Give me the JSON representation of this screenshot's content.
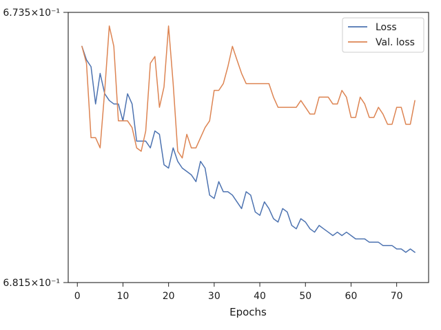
{
  "chart_data": {
    "type": "line",
    "title": "",
    "xlabel": "Epochs",
    "ylabel": "",
    "xlim": [
      -2,
      77
    ],
    "xticks": [
      0,
      10,
      20,
      30,
      40,
      50,
      60,
      70
    ],
    "xtick_labels": [
      "0",
      "10",
      "20",
      "30",
      "40",
      "50",
      "60",
      "70"
    ],
    "ylim": [
      0.6815,
      0.6735
    ],
    "yscale": "log",
    "ytick_labels": [
      "6.735×10⁻¹",
      "6.815×10⁻¹"
    ],
    "grid": false,
    "legend_position": "top-right",
    "x": [
      1,
      2,
      3,
      4,
      5,
      6,
      7,
      8,
      9,
      10,
      11,
      12,
      13,
      14,
      15,
      16,
      17,
      18,
      19,
      20,
      21,
      22,
      23,
      24,
      25,
      26,
      27,
      28,
      29,
      30,
      31,
      32,
      33,
      34,
      35,
      36,
      37,
      38,
      39,
      40,
      41,
      42,
      43,
      44,
      45,
      46,
      47,
      48,
      49,
      50,
      51,
      52,
      53,
      54,
      55,
      56,
      57,
      58,
      59,
      60,
      61,
      62,
      63,
      64,
      65,
      66,
      67,
      68,
      69,
      70,
      71,
      72,
      73,
      74
    ],
    "series": [
      {
        "name": "Loss",
        "color": "#4c72b0",
        "values": [
          0.6745,
          0.6749,
          0.6751,
          0.6762,
          0.6753,
          0.6759,
          0.6761,
          0.6762,
          0.6762,
          0.6767,
          0.6759,
          0.6762,
          0.6773,
          0.6773,
          0.6773,
          0.6775,
          0.677,
          0.6771,
          0.678,
          0.6781,
          0.6775,
          0.6779,
          0.6781,
          0.6782,
          0.6783,
          0.6785,
          0.6779,
          0.6781,
          0.6789,
          0.679,
          0.6785,
          0.6788,
          0.6788,
          0.6789,
          0.6791,
          0.6793,
          0.6788,
          0.6789,
          0.6794,
          0.6795,
          0.6791,
          0.6793,
          0.6796,
          0.6797,
          0.6793,
          0.6794,
          0.6798,
          0.6799,
          0.6796,
          0.6797,
          0.6799,
          0.68,
          0.6798,
          0.6799,
          0.68,
          0.6801,
          0.68,
          0.6801,
          0.68,
          0.6801,
          0.6802,
          0.6802,
          0.6802,
          0.6803,
          0.6803,
          0.6803,
          0.6804,
          0.6804,
          0.6804,
          0.6805,
          0.6805,
          0.6806,
          0.6805,
          0.6806
        ]
      },
      {
        "name": "Val. loss",
        "color": "#dd8452",
        "values": [
          0.6745,
          0.675,
          0.6772,
          0.6772,
          0.6775,
          0.6758,
          0.6739,
          0.6745,
          0.6767,
          0.6767,
          0.6767,
          0.6769,
          0.6775,
          0.6776,
          0.677,
          0.675,
          0.6748,
          0.6763,
          0.6757,
          0.6739,
          0.6756,
          0.6776,
          0.6778,
          0.6771,
          0.6775,
          0.6775,
          0.6772,
          0.6769,
          0.6767,
          0.6758,
          0.6758,
          0.6756,
          0.6751,
          0.6745,
          0.6749,
          0.6753,
          0.6756,
          0.6756,
          0.6756,
          0.6756,
          0.6756,
          0.6756,
          0.676,
          0.6763,
          0.6763,
          0.6763,
          0.6763,
          0.6763,
          0.6761,
          0.6763,
          0.6765,
          0.6765,
          0.676,
          0.676,
          0.676,
          0.6762,
          0.6762,
          0.6758,
          0.676,
          0.6766,
          0.6766,
          0.676,
          0.6762,
          0.6766,
          0.6766,
          0.6763,
          0.6765,
          0.6768,
          0.6768,
          0.6763,
          0.6763,
          0.6768,
          0.6768,
          0.6761
        ]
      }
    ]
  }
}
